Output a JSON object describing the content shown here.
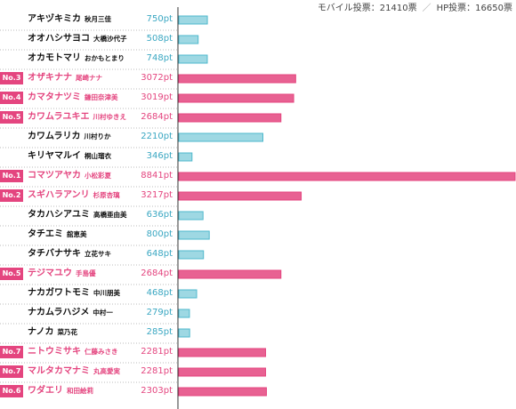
{
  "header": {
    "mobile": "モバイル投票：21410票",
    "hp": "HP投票：16650票"
  },
  "chart_data": {
    "type": "bar",
    "orientation": "horizontal",
    "unit": "pt",
    "colors": {
      "ranked": "#e4457f",
      "unranked": "#4fb8cc"
    },
    "rows": [
      {
        "kana": "アキヅキミカ",
        "kanji": "秋月三佳",
        "value": 750,
        "label": "750pt",
        "rank": ""
      },
      {
        "kana": "オオハシサヨコ",
        "kanji": "大橋沙代子",
        "value": 508,
        "label": "508pt",
        "rank": ""
      },
      {
        "kana": "オカモトマリ",
        "kanji": "おかもとまり",
        "value": 748,
        "label": "748pt",
        "rank": ""
      },
      {
        "kana": "オザキナナ",
        "kanji": "尾崎ナナ",
        "value": 3072,
        "label": "3072pt",
        "rank": "No.3"
      },
      {
        "kana": "カマタナツミ",
        "kanji": "鎌田奈津美",
        "value": 3019,
        "label": "3019pt",
        "rank": "No.4"
      },
      {
        "kana": "カワムラユキエ",
        "kanji": "川村ゆきえ",
        "value": 2684,
        "label": "2684pt",
        "rank": "No.5"
      },
      {
        "kana": "カワムラリカ",
        "kanji": "川村りか",
        "value": 2210,
        "label": "2210pt",
        "rank": ""
      },
      {
        "kana": "キリヤマルイ",
        "kanji": "桐山瑠衣",
        "value": 346,
        "label": "346pt",
        "rank": ""
      },
      {
        "kana": "コマツアヤカ",
        "kanji": "小松彩夏",
        "value": 8841,
        "label": "8841pt",
        "rank": "No.1"
      },
      {
        "kana": "スギハラアンリ",
        "kanji": "杉原杏璃",
        "value": 3217,
        "label": "3217pt",
        "rank": "No.2"
      },
      {
        "kana": "タカハシアユミ",
        "kanji": "高橋亜由美",
        "value": 636,
        "label": "636pt",
        "rank": ""
      },
      {
        "kana": "タチエミ",
        "kanji": "舘恵美",
        "value": 800,
        "label": "800pt",
        "rank": ""
      },
      {
        "kana": "タチバナサキ",
        "kanji": "立花サキ",
        "value": 648,
        "label": "648pt",
        "rank": ""
      },
      {
        "kana": "テジマユウ",
        "kanji": "手島優",
        "value": 2684,
        "label": "2684pt",
        "rank": "No.5"
      },
      {
        "kana": "ナカガワトモミ",
        "kanji": "中川朋美",
        "value": 468,
        "label": "468pt",
        "rank": ""
      },
      {
        "kana": "ナカムラハジメ",
        "kanji": "中村一",
        "value": 279,
        "label": "279pt",
        "rank": ""
      },
      {
        "kana": "ナノカ",
        "kanji": "菜乃花",
        "value": 285,
        "label": "285pt",
        "rank": ""
      },
      {
        "kana": "ニトウミサキ",
        "kanji": "仁藤みさき",
        "value": 2281,
        "label": "2281pt",
        "rank": "No.7"
      },
      {
        "kana": "マルタカマナミ",
        "kanji": "丸高愛実",
        "value": 2281,
        "label": "2281pt",
        "rank": "No.7"
      },
      {
        "kana": "ワダエリ",
        "kanji": "和田絵莉",
        "value": 2303,
        "label": "2303pt",
        "rank": "No.6"
      }
    ]
  }
}
